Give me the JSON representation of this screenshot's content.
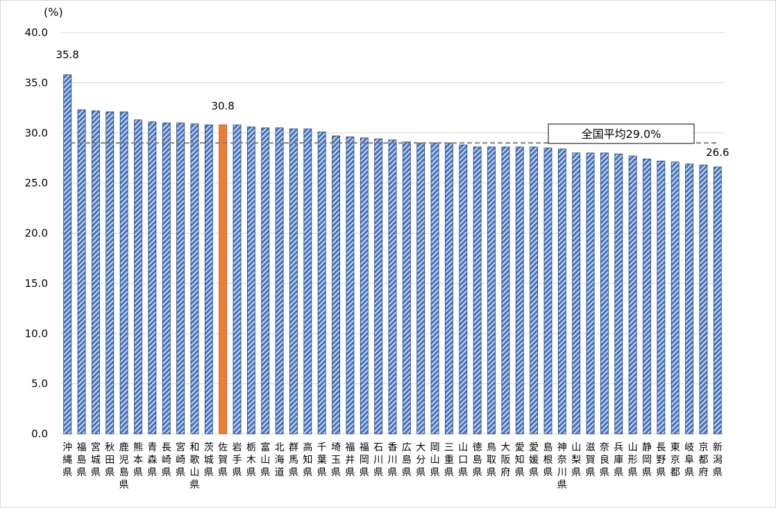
{
  "chart_data": {
    "type": "bar",
    "unit_label": "(%)",
    "ylim": [
      0,
      40
    ],
    "yticks": [
      "0.0",
      "5.0",
      "10.0",
      "15.0",
      "20.0",
      "25.0",
      "30.0",
      "35.0",
      "40.0"
    ],
    "grid": true,
    "categories": [
      "沖縄県",
      "福島県",
      "宮城県",
      "秋田県",
      "鹿児島県",
      "熊本県",
      "青森県",
      "長崎県",
      "宮崎県",
      "和歌山県",
      "茨城県",
      "佐賀県",
      "岩手県",
      "栃木県",
      "富山県",
      "北海道",
      "群馬県",
      "高知県",
      "千葉県",
      "埼玉県",
      "福井県",
      "福岡県",
      "石川県",
      "香川県",
      "広島県",
      "大分県",
      "岡山県",
      "三重県",
      "山口県",
      "徳島県",
      "鳥取県",
      "大阪府",
      "愛知県",
      "愛媛県",
      "島根県",
      "神奈川県",
      "山梨県",
      "滋賀県",
      "奈良県",
      "兵庫県",
      "山形県",
      "静岡県",
      "長野県",
      "東京都",
      "岐阜県",
      "京都府",
      "新潟県"
    ],
    "values": [
      35.8,
      32.3,
      32.2,
      32.1,
      32.1,
      31.3,
      31.1,
      31.0,
      31.0,
      30.9,
      30.8,
      30.8,
      30.8,
      30.6,
      30.5,
      30.5,
      30.4,
      30.4,
      30.1,
      29.7,
      29.6,
      29.5,
      29.4,
      29.3,
      29.1,
      29.0,
      29.0,
      29.0,
      28.8,
      28.6,
      28.6,
      28.6,
      28.6,
      28.6,
      28.5,
      28.4,
      28.0,
      28.0,
      28.0,
      27.9,
      27.7,
      27.4,
      27.2,
      27.1,
      26.9,
      26.8,
      26.6
    ],
    "highlight_index": 11,
    "data_labels": [
      {
        "index": 0,
        "text": "35.8"
      },
      {
        "index": 11,
        "text": "30.8"
      },
      {
        "index": 46,
        "text": "26.6"
      }
    ],
    "average": {
      "value": 29.0,
      "label": "全国平均29.0%"
    },
    "colors": {
      "bar_fill": "#4472c4",
      "bar_stripe": "#ffffff",
      "highlight": "#ed7d31",
      "grid": "#d9d9d9",
      "average_line": "#808080"
    }
  }
}
